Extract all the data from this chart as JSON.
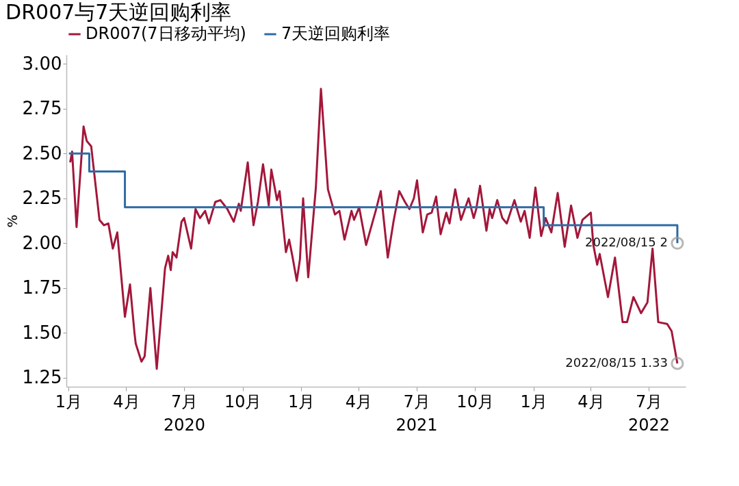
{
  "chart_data": {
    "type": "line",
    "title": "DR007与7天逆回购利率",
    "ylabel": "%",
    "ylim": [
      1.2,
      3.05
    ],
    "yticks": [
      {
        "value": 1.25,
        "label": "1.25"
      },
      {
        "value": 1.5,
        "label": "1.50"
      },
      {
        "value": 1.75,
        "label": "1.75"
      },
      {
        "value": 2.0,
        "label": "2.00"
      },
      {
        "value": 2.25,
        "label": "2.25"
      },
      {
        "value": 2.5,
        "label": "2.50"
      },
      {
        "value": 2.75,
        "label": "2.75"
      },
      {
        "value": 3.0,
        "label": "3.00"
      }
    ],
    "xlim": [
      "2019-12-29",
      "2022-08-28"
    ],
    "xticks": [
      {
        "value": "2020-01-01",
        "label": "1月"
      },
      {
        "value": "2020-04-01",
        "label": "4月"
      },
      {
        "value": "2020-07-01",
        "label": "7月\n2020"
      },
      {
        "value": "2020-10-01",
        "label": "10月"
      },
      {
        "value": "2021-01-01",
        "label": "1月"
      },
      {
        "value": "2021-04-01",
        "label": "4月"
      },
      {
        "value": "2021-07-01",
        "label": "7月\n2021"
      },
      {
        "value": "2021-10-01",
        "label": "10月"
      },
      {
        "value": "2022-01-01",
        "label": "1月"
      },
      {
        "value": "2022-04-01",
        "label": "4月"
      },
      {
        "value": "2022-07-01",
        "label": "7月\n2022"
      }
    ],
    "grid": false,
    "legend": "top",
    "line_style": "solid",
    "marker": "none",
    "series": [
      {
        "name": "DR007(7日移动平均)",
        "color": "#a3173a",
        "x": [
          "2020-01-04",
          "2020-01-07",
          "2020-01-14",
          "2020-01-25",
          "2020-01-30",
          "2020-02-06",
          "2020-02-19",
          "2020-02-26",
          "2020-03-04",
          "2020-03-11",
          "2020-03-18",
          "2020-03-30",
          "2020-04-07",
          "2020-04-14",
          "2020-04-16",
          "2020-04-25",
          "2020-04-30",
          "2020-05-09",
          "2020-05-19",
          "2020-06-01",
          "2020-06-06",
          "2020-06-10",
          "2020-06-13",
          "2020-06-19",
          "2020-06-27",
          "2020-07-01",
          "2020-07-12",
          "2020-07-19",
          "2020-07-26",
          "2020-08-03",
          "2020-08-09",
          "2020-08-19",
          "2020-08-27",
          "2020-09-07",
          "2020-09-17",
          "2020-09-25",
          "2020-09-28",
          "2020-10-09",
          "2020-10-18",
          "2020-10-25",
          "2020-11-02",
          "2020-11-11",
          "2020-11-15",
          "2020-11-24",
          "2020-11-28",
          "2020-12-08",
          "2020-12-13",
          "2020-12-18",
          "2020-12-25",
          "2020-12-30",
          "2021-01-04",
          "2021-01-12",
          "2021-01-24",
          "2021-02-01",
          "2021-02-12",
          "2021-02-23",
          "2021-03-02",
          "2021-03-10",
          "2021-03-21",
          "2021-03-25",
          "2021-04-02",
          "2021-04-13",
          "2021-04-28",
          "2021-05-06",
          "2021-05-17",
          "2021-05-26",
          "2021-06-04",
          "2021-06-13",
          "2021-06-20",
          "2021-06-27",
          "2021-07-02",
          "2021-07-11",
          "2021-07-18",
          "2021-07-25",
          "2021-08-01",
          "2021-08-08",
          "2021-08-17",
          "2021-08-22",
          "2021-08-31",
          "2021-09-09",
          "2021-09-21",
          "2021-09-29",
          "2021-10-03",
          "2021-10-09",
          "2021-10-19",
          "2021-10-24",
          "2021-10-28",
          "2021-11-05",
          "2021-11-13",
          "2021-11-20",
          "2021-12-02",
          "2021-12-12",
          "2021-12-18",
          "2021-12-26",
          "2022-01-04",
          "2022-01-13",
          "2022-01-20",
          "2022-01-29",
          "2022-02-08",
          "2022-02-19",
          "2022-03-01",
          "2022-03-11",
          "2022-03-19",
          "2022-04-01",
          "2022-04-05",
          "2022-04-11",
          "2022-04-15",
          "2022-04-28",
          "2022-05-09",
          "2022-05-21",
          "2022-05-28",
          "2022-06-07",
          "2022-06-19",
          "2022-06-29",
          "2022-07-07",
          "2022-07-16",
          "2022-07-30",
          "2022-08-06",
          "2022-08-15"
        ],
        "values": [
          2.45,
          2.51,
          2.09,
          2.65,
          2.57,
          2.54,
          2.13,
          2.1,
          2.11,
          1.97,
          2.06,
          1.59,
          1.77,
          1.5,
          1.44,
          1.34,
          1.37,
          1.75,
          1.3,
          1.86,
          1.93,
          1.85,
          1.95,
          1.92,
          2.12,
          2.14,
          1.97,
          2.19,
          2.14,
          2.18,
          2.11,
          2.23,
          2.24,
          2.19,
          2.12,
          2.22,
          2.18,
          2.45,
          2.1,
          2.23,
          2.44,
          2.21,
          2.41,
          2.24,
          2.29,
          1.95,
          2.02,
          1.93,
          1.79,
          1.91,
          2.25,
          1.81,
          2.31,
          2.86,
          2.3,
          2.16,
          2.18,
          2.02,
          2.18,
          2.13,
          2.2,
          1.99,
          2.18,
          2.29,
          1.92,
          2.12,
          2.29,
          2.23,
          2.19,
          2.25,
          2.35,
          2.06,
          2.16,
          2.17,
          2.26,
          2.05,
          2.17,
          2.11,
          2.3,
          2.13,
          2.25,
          2.14,
          2.19,
          2.32,
          2.07,
          2.19,
          2.14,
          2.24,
          2.14,
          2.11,
          2.24,
          2.12,
          2.18,
          2.03,
          2.31,
          2.04,
          2.14,
          2.06,
          2.28,
          1.98,
          2.21,
          2.03,
          2.13,
          2.17,
          1.99,
          1.88,
          1.94,
          1.7,
          1.92,
          1.56,
          1.56,
          1.7,
          1.61,
          1.67,
          1.97,
          1.56,
          1.55,
          1.51,
          1.33
        ]
      },
      {
        "name": "7天逆回购利率",
        "color": "#2e6ba5",
        "type": "step",
        "x": [
          "2020-01-02",
          "2020-02-03",
          "2020-03-30",
          "2022-01-17",
          "2022-08-15"
        ],
        "values": [
          2.5,
          2.4,
          2.2,
          2.1,
          2.0
        ]
      }
    ],
    "annotations": [
      {
        "text": "2022/08/15 2",
        "x": "2022-08-15",
        "y": 2.0
      },
      {
        "text": "2022/08/15 1.33",
        "x": "2022-08-15",
        "y": 1.33
      }
    ]
  }
}
